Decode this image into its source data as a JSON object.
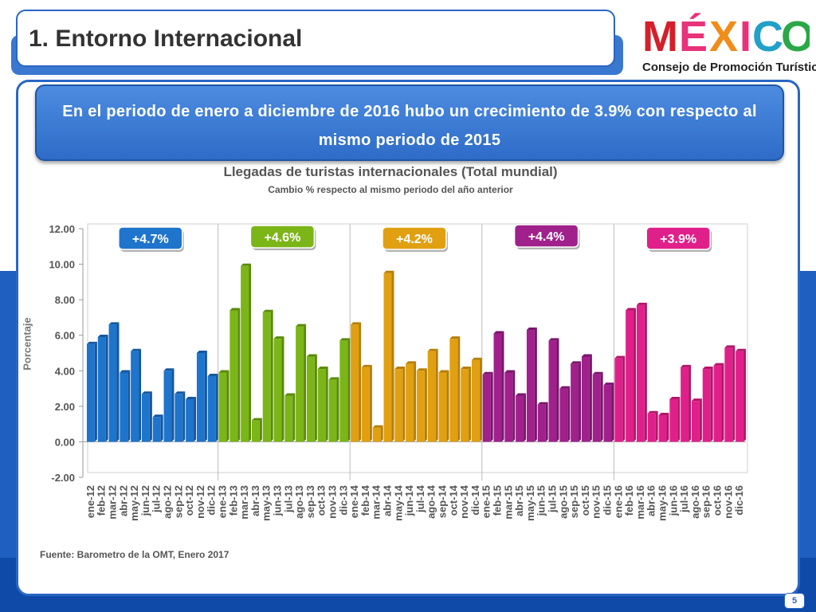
{
  "header": {
    "title": "1.   Entorno Internacional"
  },
  "logo": {
    "word": "MÉXICO",
    "subtitle": "Consejo de Promoción Turística"
  },
  "banner": {
    "text": "En el periodo de enero a diciembre de 2016  hubo un crecimiento de 3.9% con respecto al mismo periodo de 2015"
  },
  "source": "Fuente: Barometro de la OMT, Enero 2017",
  "page_number": "5",
  "chart_data": {
    "type": "bar",
    "title": "Llegadas de turistas internacionales (Total mundial)",
    "subtitle": "Cambio % respecto al mismo periodo del año anterior",
    "ylabel": "Porcentaje",
    "ylim": [
      -2,
      12
    ],
    "yticks": [
      "-2.00",
      "0.00",
      "2.00",
      "4.00",
      "6.00",
      "8.00",
      "10.00",
      "12.00"
    ],
    "grid": false,
    "categories": [
      "ene-12",
      "feb-12",
      "mar-12",
      "abr-12",
      "may-12",
      "jun-12",
      "jul-12",
      "ago-12",
      "sep-12",
      "oct-12",
      "nov-12",
      "dic-12",
      "ene-13",
      "feb-13",
      "mar-13",
      "abr-13",
      "may-13",
      "jun-13",
      "jul-13",
      "ago-13",
      "sep-13",
      "oct-13",
      "nov-13",
      "dic-13",
      "ene-14",
      "feb-14",
      "mar-14",
      "abr-14",
      "may-14",
      "jun-14",
      "jul-14",
      "ago-14",
      "sep-14",
      "oct-14",
      "nov-14",
      "dic-14",
      "ene-15",
      "feb-15",
      "mar-15",
      "abr-15",
      "may-15",
      "jun-15",
      "jul-15",
      "ago-15",
      "sep-15",
      "oct-15",
      "nov-15",
      "dic-15",
      "ene-16",
      "feb-16",
      "mar-16",
      "abr-16",
      "may-16",
      "jun-16",
      "jul-16",
      "ago-16",
      "sep-16",
      "oct-16",
      "nov-16",
      "dic-16"
    ],
    "values": [
      5.5,
      5.9,
      6.6,
      3.9,
      5.1,
      2.7,
      1.4,
      4.0,
      2.7,
      2.4,
      5.0,
      3.7,
      3.9,
      7.4,
      9.9,
      1.2,
      7.3,
      5.8,
      2.6,
      6.5,
      4.8,
      4.1,
      3.5,
      5.7,
      6.6,
      4.2,
      0.8,
      9.5,
      4.1,
      4.4,
      4.0,
      5.1,
      3.9,
      5.8,
      4.1,
      4.6,
      3.8,
      6.1,
      3.9,
      2.6,
      6.3,
      2.1,
      5.7,
      3.0,
      4.4,
      4.8,
      3.8,
      3.2,
      4.7,
      7.4,
      7.7,
      1.6,
      1.5,
      2.4,
      4.2,
      2.3,
      4.1,
      4.3,
      5.3,
      5.1
    ],
    "year_groups": [
      {
        "label": "+4.7%",
        "color": "#1f74cc",
        "dark": "#14579e"
      },
      {
        "label": "+4.6%",
        "color": "#7cb518",
        "dark": "#5a8a0c"
      },
      {
        "label": "+4.2%",
        "color": "#e0a012",
        "dark": "#b57e08"
      },
      {
        "label": "+4.4%",
        "color": "#a0208c",
        "dark": "#78166a"
      },
      {
        "label": "+3.9%",
        "color": "#e0208a",
        "dark": "#b01668"
      }
    ]
  }
}
